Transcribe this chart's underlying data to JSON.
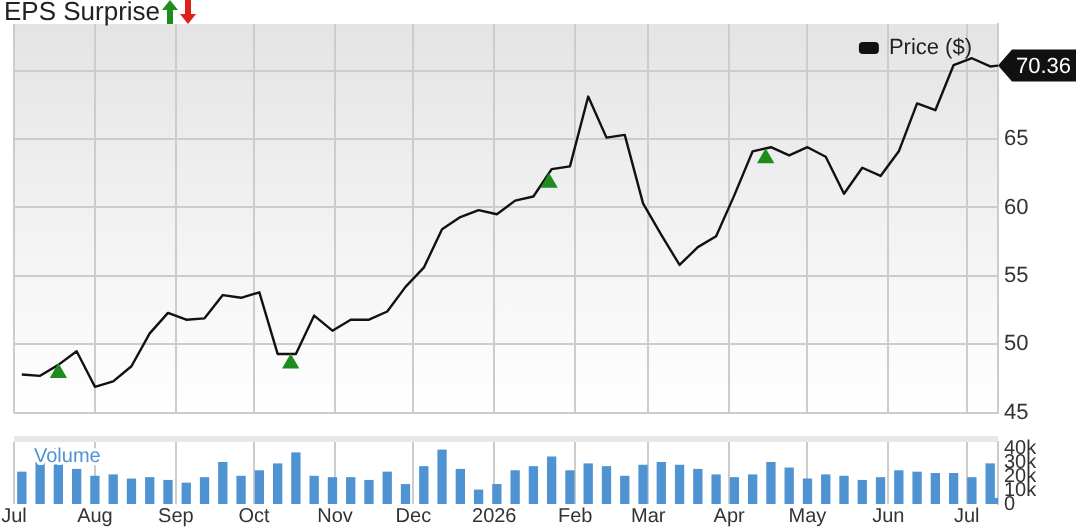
{
  "chart_data": [
    {
      "type": "line",
      "title": "EPS Surprise",
      "legend": "top right",
      "grid": true,
      "tick_labels": "y",
      "xlim": [
        "2025-07-01",
        "2026-07-13"
      ],
      "xticks": [
        {
          "value": "2025-07-01",
          "label": null
        },
        {
          "value": "2025-08-01",
          "label": null
        },
        {
          "value": "2025-09-01",
          "label": null
        },
        {
          "value": "2025-10-01",
          "label": null
        },
        {
          "value": "2025-11-01",
          "label": null
        },
        {
          "value": "2025-12-01",
          "label": null
        },
        {
          "value": "2026-01-01",
          "label": null
        },
        {
          "value": "2026-02-01",
          "label": null
        },
        {
          "value": "2026-03-01",
          "label": null
        },
        {
          "value": "2026-04-01",
          "label": null
        },
        {
          "value": "2026-05-01",
          "label": null
        },
        {
          "value": "2026-06-01",
          "label": null
        },
        {
          "value": "2026-07-01",
          "label": null
        }
      ],
      "ylim": [
        45,
        73.4
      ],
      "yticks": [
        45,
        50,
        55,
        60,
        65,
        {
          "value": 70,
          "label": null
        }
      ],
      "series": [
        {
          "name": "Price ($)",
          "color": "#111111",
          "marker": "none",
          "x": [
            "2025-07-04",
            "2025-07-11",
            "2025-07-18",
            "2025-07-25",
            "2025-08-01",
            "2025-08-08",
            "2025-08-15",
            "2025-08-22",
            "2025-08-29",
            "2025-09-05",
            "2025-09-12",
            "2025-09-19",
            "2025-09-26",
            "2025-10-03",
            "2025-10-10",
            "2025-10-17",
            "2025-10-24",
            "2025-10-31",
            "2025-11-07",
            "2025-11-14",
            "2025-11-21",
            "2025-11-28",
            "2025-12-05",
            "2025-12-12",
            "2025-12-19",
            "2025-12-26",
            "2026-01-02",
            "2026-01-09",
            "2026-01-16",
            "2026-01-23",
            "2026-01-30",
            "2026-02-06",
            "2026-02-13",
            "2026-02-20",
            "2026-02-27",
            "2026-03-06",
            "2026-03-13",
            "2026-03-20",
            "2026-03-27",
            "2026-04-03",
            "2026-04-10",
            "2026-04-17",
            "2026-04-24",
            "2026-05-01",
            "2026-05-08",
            "2026-05-15",
            "2026-05-22",
            "2026-05-29",
            "2026-06-05",
            "2026-06-12",
            "2026-06-19",
            "2026-06-26",
            "2026-07-03",
            "2026-07-10",
            "2026-07-13"
          ],
          "values": [
            47.8,
            47.7,
            48.5,
            49.5,
            46.9,
            47.3,
            48.4,
            50.8,
            52.3,
            51.8,
            51.9,
            53.6,
            53.4,
            53.8,
            49.3,
            49.3,
            52.1,
            51.0,
            51.8,
            51.8,
            52.4,
            54.2,
            55.6,
            58.4,
            59.3,
            59.8,
            59.5,
            60.5,
            60.8,
            62.8,
            63.0,
            68.1,
            65.1,
            65.3,
            60.3,
            58.0,
            55.8,
            57.1,
            57.9,
            60.9,
            64.1,
            64.4,
            63.8,
            64.4,
            63.7,
            61.0,
            62.9,
            62.3,
            64.1,
            67.6,
            67.1,
            70.4,
            70.9,
            70.3,
            70.36
          ],
          "value_labels": [
            null,
            null,
            null,
            null,
            null,
            null,
            null,
            null,
            null,
            null,
            null,
            null,
            null,
            null,
            null,
            null,
            null,
            null,
            null,
            null,
            null,
            null,
            null,
            null,
            null,
            null,
            null,
            null,
            null,
            null,
            null,
            null,
            null,
            null,
            null,
            null,
            null,
            null,
            null,
            null,
            null,
            null,
            null,
            null,
            null,
            null,
            null,
            null,
            null,
            null,
            null,
            null,
            null,
            null,
            "70.36"
          ]
        },
        {
          "type": "scatter",
          "color": "#1e8c1e",
          "marker": "triangle",
          "x": [
            "2025-07-18",
            "2025-10-15",
            "2026-01-22",
            "2026-04-15"
          ],
          "values": [
            47.9,
            48.6,
            61.8,
            63.6
          ]
        }
      ]
    },
    {
      "type": "bar",
      "grid": "x",
      "xlim": [
        "2025-07-01",
        "2026-07-13"
      ],
      "xticks": [
        {
          "value": "2025-07-01",
          "label": "Jul"
        },
        {
          "value": "2025-08-01",
          "label": "Aug"
        },
        {
          "value": "2025-09-01",
          "label": "Sep"
        },
        {
          "value": "2025-10-01",
          "label": "Oct"
        },
        {
          "value": "2025-11-01",
          "label": "Nov"
        },
        {
          "value": "2025-12-01",
          "label": "Dec"
        },
        {
          "value": "2026-01-01",
          "label": "2026"
        },
        {
          "value": "2026-02-01",
          "label": "Feb"
        },
        {
          "value": "2026-03-01",
          "label": "Mar"
        },
        {
          "value": "2026-04-01",
          "label": "Apr"
        },
        {
          "value": "2026-05-01",
          "label": "May"
        },
        {
          "value": "2026-06-01",
          "label": "Jun"
        },
        {
          "value": "2026-07-01",
          "label": "Jul"
        }
      ],
      "ylim": [
        0,
        45000
      ],
      "yticks": [
        {
          "value": 0,
          "label": "0"
        },
        {
          "value": 10000,
          "label": "10k"
        },
        {
          "value": 20000,
          "label": "20k"
        },
        {
          "value": 30000,
          "label": "30k"
        },
        {
          "value": 40000,
          "label": "40k"
        }
      ],
      "series": [
        {
          "name": "Volume",
          "color": "#4f93d3",
          "x": [
            "2025-07-04",
            "2025-07-11",
            "2025-07-18",
            "2025-07-25",
            "2025-08-01",
            "2025-08-08",
            "2025-08-15",
            "2025-08-22",
            "2025-08-29",
            "2025-09-05",
            "2025-09-12",
            "2025-09-19",
            "2025-09-26",
            "2025-10-03",
            "2025-10-10",
            "2025-10-17",
            "2025-10-24",
            "2025-10-31",
            "2025-11-07",
            "2025-11-14",
            "2025-11-21",
            "2025-11-28",
            "2025-12-05",
            "2025-12-12",
            "2025-12-19",
            "2025-12-26",
            "2026-01-02",
            "2026-01-09",
            "2026-01-16",
            "2026-01-23",
            "2026-01-30",
            "2026-02-06",
            "2026-02-13",
            "2026-02-20",
            "2026-02-27",
            "2026-03-06",
            "2026-03-13",
            "2026-03-20",
            "2026-03-27",
            "2026-04-03",
            "2026-04-10",
            "2026-04-17",
            "2026-04-24",
            "2026-05-01",
            "2026-05-08",
            "2026-05-15",
            "2026-05-22",
            "2026-05-29",
            "2026-06-05",
            "2026-06-12",
            "2026-06-19",
            "2026-06-26",
            "2026-07-03",
            "2026-07-10",
            "2026-07-13"
          ],
          "values": [
            23000,
            30000,
            40000,
            25000,
            20000,
            21000,
            18000,
            19000,
            17000,
            15000,
            19000,
            30000,
            20000,
            24000,
            29000,
            37000,
            20000,
            19000,
            19000,
            17000,
            23000,
            14000,
            27000,
            39000,
            25000,
            10000,
            14000,
            24000,
            27000,
            34000,
            24000,
            29000,
            27000,
            20000,
            28000,
            30000,
            28000,
            25000,
            21000,
            19000,
            21000,
            30000,
            26000,
            18000,
            21000,
            20000,
            17000,
            19000,
            24000,
            23000,
            22000,
            22000,
            19000,
            29000,
            4000
          ]
        }
      ]
    }
  ]
}
